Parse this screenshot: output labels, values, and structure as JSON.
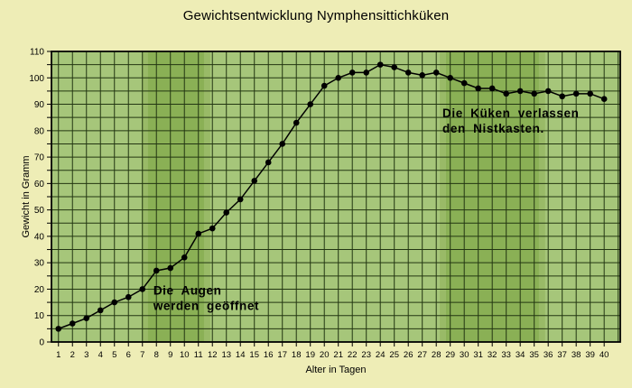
{
  "title": "Gewichtsentwicklung Nymphensittichküken",
  "chart_data": {
    "type": "line",
    "title": "Gewichtsentwicklung Nymphensittichküken",
    "xlabel": "Alter in Tagen",
    "ylabel": "Gewicht in Gramm",
    "xlim": [
      0.5,
      41.15
    ],
    "ylim": [
      0,
      110
    ],
    "grid": true,
    "legend": "none",
    "x": [
      1,
      2,
      3,
      4,
      5,
      6,
      7,
      8,
      9,
      10,
      11,
      12,
      13,
      14,
      15,
      16,
      17,
      18,
      19,
      20,
      21,
      22,
      23,
      24,
      25,
      26,
      27,
      28,
      29,
      30,
      31,
      32,
      33,
      34,
      35,
      36,
      37,
      38,
      39,
      40
    ],
    "values": [
      5,
      7,
      9,
      12,
      15,
      17,
      20,
      27,
      28,
      32,
      41,
      43,
      49,
      54,
      61,
      68,
      75,
      83,
      90,
      97,
      100,
      102,
      102,
      105,
      104,
      102,
      101,
      102,
      100,
      98,
      96,
      96,
      94,
      95,
      94,
      95,
      93,
      94,
      94,
      92
    ],
    "x_ticks": [
      1,
      2,
      3,
      4,
      5,
      6,
      7,
      8,
      9,
      10,
      11,
      12,
      13,
      14,
      15,
      16,
      17,
      18,
      19,
      20,
      21,
      22,
      23,
      24,
      25,
      26,
      27,
      28,
      29,
      30,
      31,
      32,
      33,
      34,
      35,
      36,
      37,
      38,
      39,
      40
    ],
    "y_tick_labels": [
      0,
      10,
      20,
      30,
      40,
      50,
      60,
      70,
      80,
      90,
      100,
      110
    ],
    "y_grid_step": 5,
    "bands": [
      {
        "from_day": 6.95,
        "to_day": 11.85,
        "meaning": "Die Augen werden geöffnet"
      },
      {
        "from_day": 28.25,
        "to_day": 35.78,
        "meaning": "Die Küken verlassen den Nistkasten."
      }
    ],
    "annotations": [
      {
        "lines": [
          "Die Augen",
          "werden geöffnet"
        ],
        "day": 7.78,
        "value": 18
      },
      {
        "lines": [
          "Die Küken verlassen",
          "den Nistkasten."
        ],
        "day": 28.44,
        "value": 85
      }
    ]
  },
  "colors": {
    "page_bg": "#eeedb6",
    "plot_bg": "#a6c67a",
    "band": "#8ab055",
    "band_edge": "#99ba67",
    "grid": "#233612",
    "border": "#000000",
    "line": "#000000",
    "point": "#000000",
    "annotation_text": "#192909",
    "text": "#000000"
  }
}
